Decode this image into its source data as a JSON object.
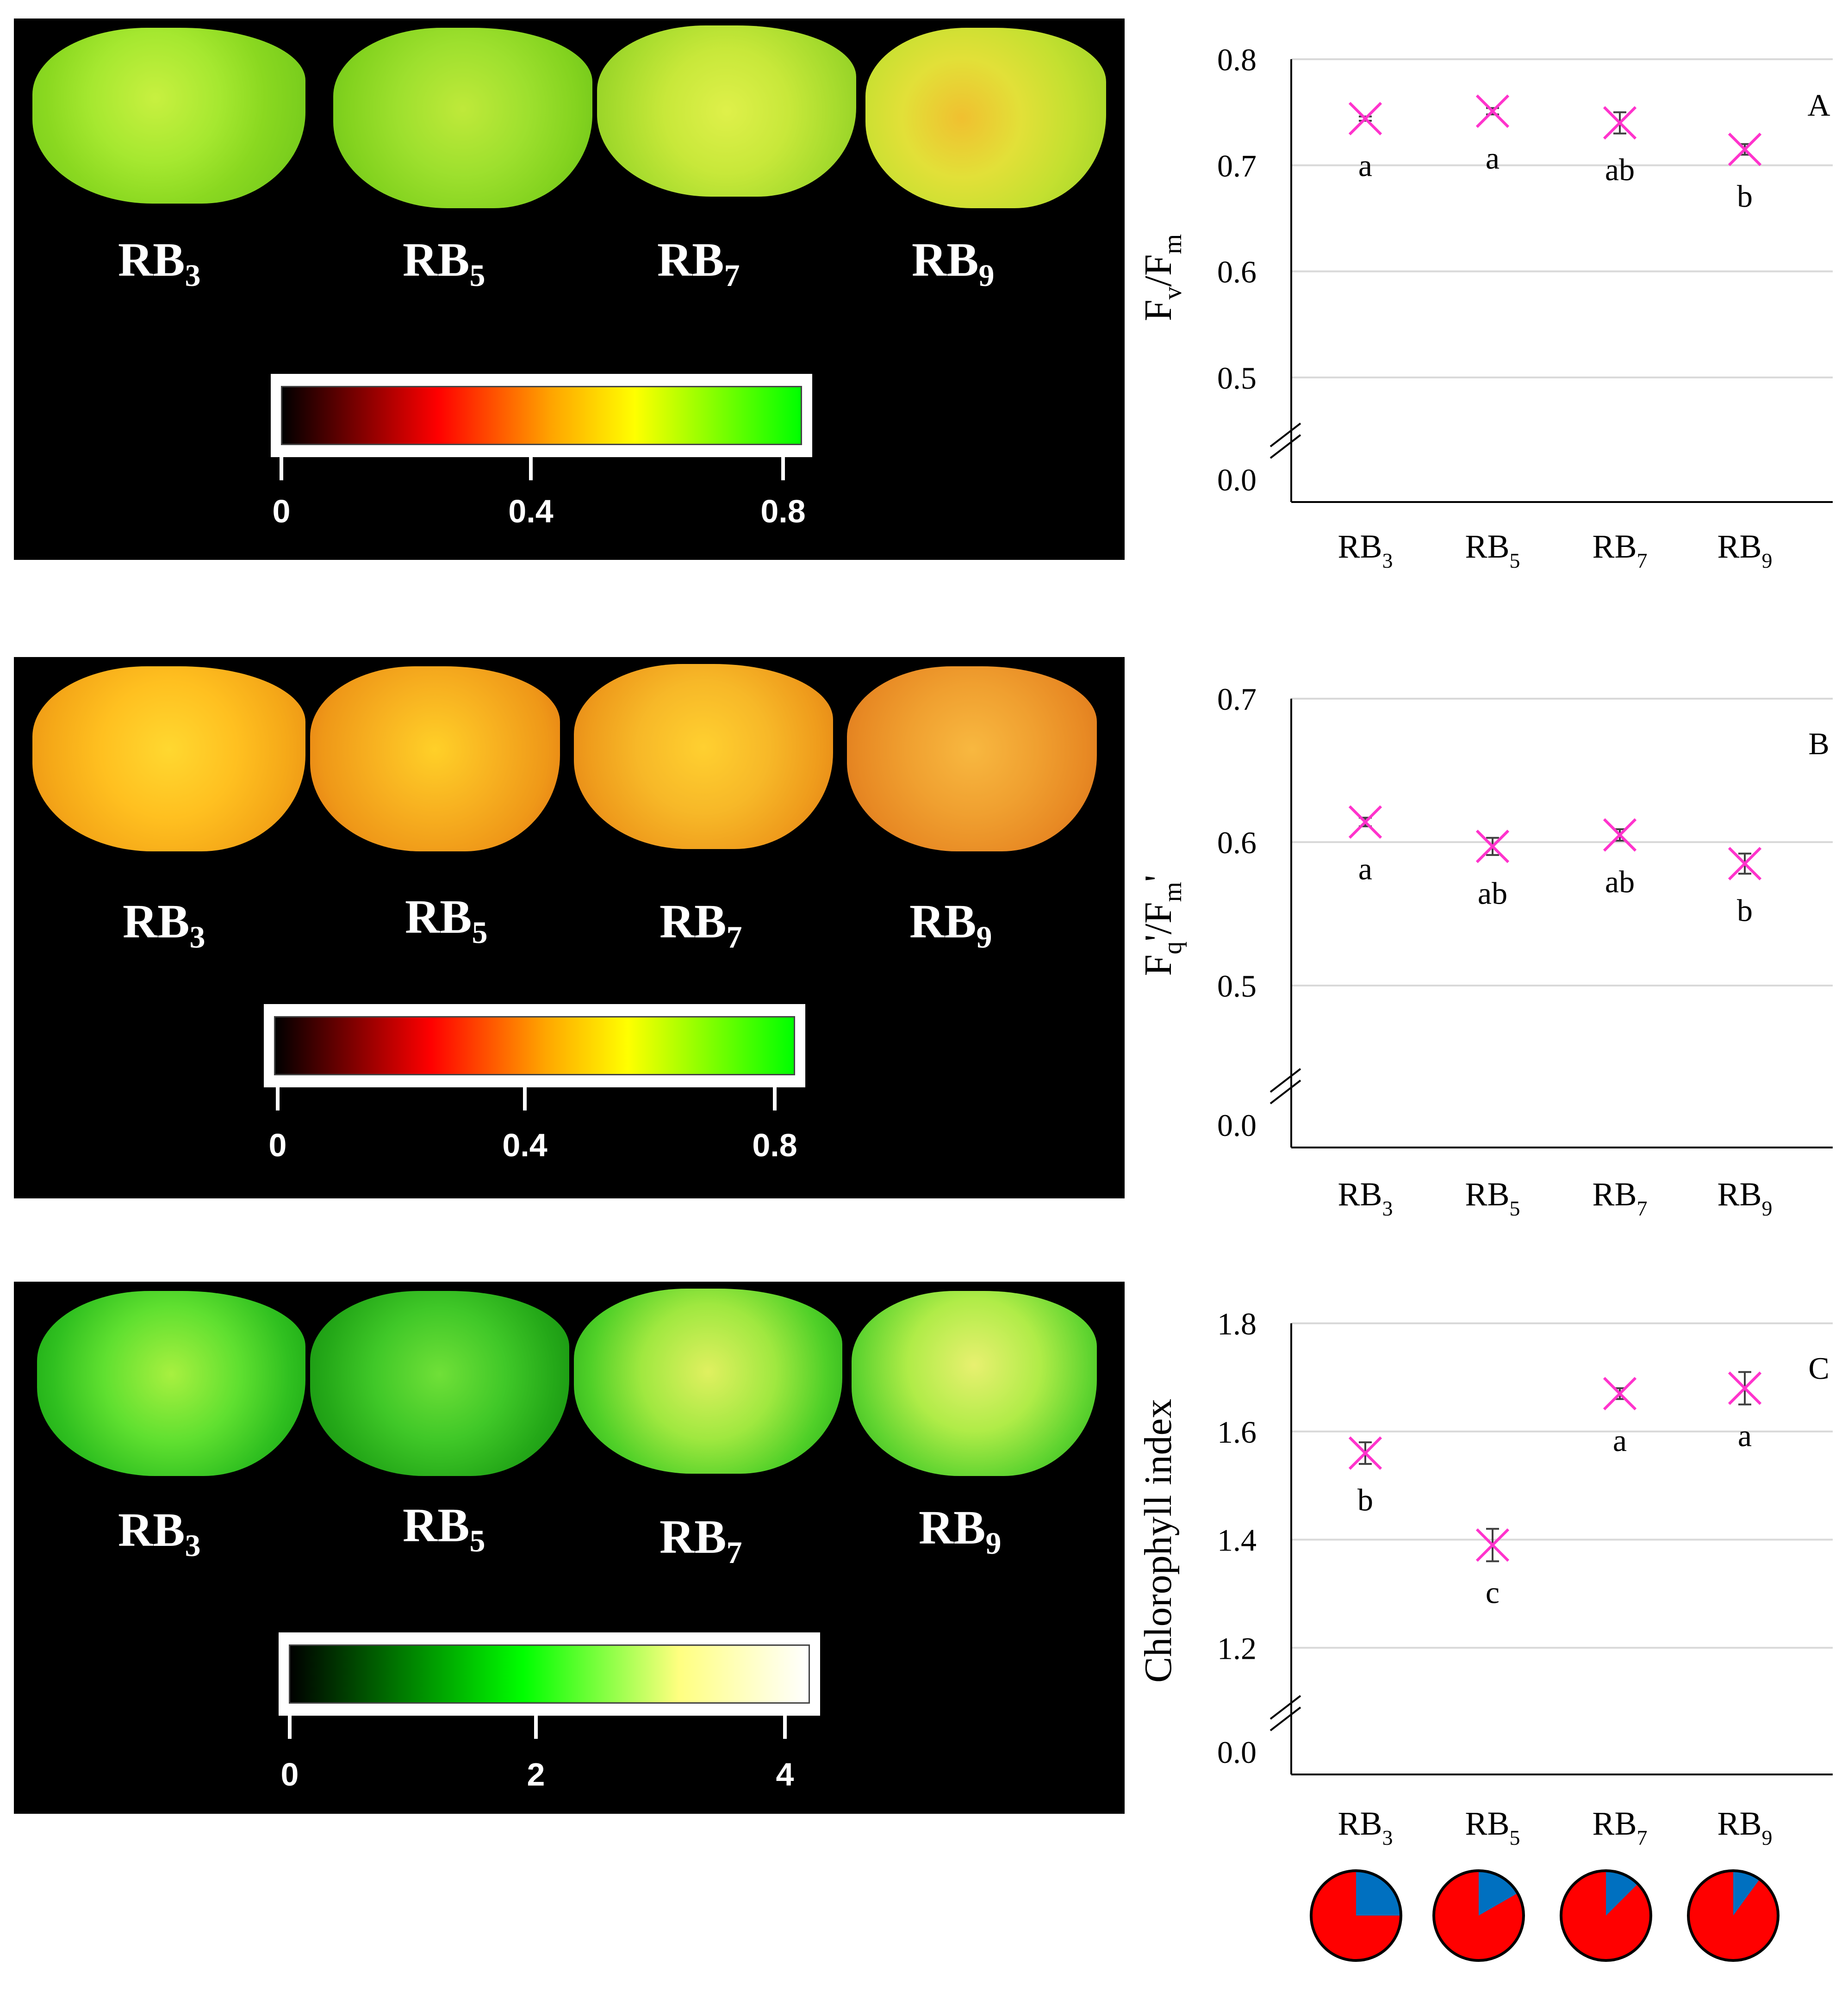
{
  "colors": {
    "marker": "#ff33cc",
    "errorbar": "#404040",
    "grid": "#d9d9d9",
    "axis": "#000000",
    "pie_red": "#ff0000",
    "pie_blue": "#0070c0",
    "fluorescence_scale": [
      "#000000",
      "#ff0000",
      "#ffa500",
      "#ffff00",
      "#00ff00"
    ],
    "chlorophyll_scale": [
      "#000000",
      "#00ff00",
      "#ffff80",
      "#ffffff"
    ]
  },
  "images": [
    {
      "labels": [
        {
          "base": "RB",
          "sub": "3"
        },
        {
          "base": "RB",
          "sub": "5"
        },
        {
          "base": "RB",
          "sub": "7"
        },
        {
          "base": "RB",
          "sub": "9"
        }
      ],
      "colorbar_ticks": [
        "0",
        "0.4",
        "0.8"
      ]
    },
    {
      "labels": [
        {
          "base": "RB",
          "sub": "3"
        },
        {
          "base": "RB",
          "sub": "5"
        },
        {
          "base": "RB",
          "sub": "7"
        },
        {
          "base": "RB",
          "sub": "9"
        }
      ],
      "colorbar_ticks": [
        "0",
        "0.4",
        "0.8"
      ]
    },
    {
      "labels": [
        {
          "base": "RB",
          "sub": "3"
        },
        {
          "base": "RB",
          "sub": "5"
        },
        {
          "base": "RB",
          "sub": "7"
        },
        {
          "base": "RB",
          "sub": "9"
        }
      ],
      "colorbar_ticks": [
        "0",
        "2",
        "4"
      ]
    }
  ],
  "chart_data": [
    {
      "type": "scatter",
      "panel_letter": "A",
      "ylabel": {
        "main": "F",
        "sub1": "v",
        "mid": "/F",
        "sub2": "m",
        "prime": ""
      },
      "categories": [
        {
          "base": "RB",
          "sub": "3"
        },
        {
          "base": "RB",
          "sub": "5"
        },
        {
          "base": "RB",
          "sub": "7"
        },
        {
          "base": "RB",
          "sub": "9"
        }
      ],
      "values": [
        0.744,
        0.751,
        0.74,
        0.715
      ],
      "errors": [
        0.002,
        0.003,
        0.01,
        0.005
      ],
      "significance": [
        "a",
        "a",
        "ab",
        "b"
      ],
      "ylim": [
        0.4,
        0.8
      ],
      "yticks": [
        0.5,
        0.6,
        0.7,
        0.8
      ],
      "axis_break_label": "0.0",
      "grid": true
    },
    {
      "type": "scatter",
      "panel_letter": "B",
      "ylabel": {
        "main": "F",
        "sub1": "q",
        "mid": "'/F",
        "sub2": "m",
        "prime": "'"
      },
      "categories": [
        {
          "base": "RB",
          "sub": "3"
        },
        {
          "base": "RB",
          "sub": "5"
        },
        {
          "base": "RB",
          "sub": "7"
        },
        {
          "base": "RB",
          "sub": "9"
        }
      ],
      "values": [
        0.614,
        0.597,
        0.605,
        0.585
      ],
      "errors": [
        0.003,
        0.006,
        0.004,
        0.007
      ],
      "significance": [
        "a",
        "ab",
        "ab",
        "b"
      ],
      "ylim": [
        0.4,
        0.7
      ],
      "yticks": [
        0.5,
        0.6,
        0.7
      ],
      "axis_break_label": "0.0",
      "grid": true
    },
    {
      "type": "scatter",
      "panel_letter": "C",
      "ylabel": {
        "text": "Chlorophyll index"
      },
      "categories": [
        {
          "base": "RB",
          "sub": "3"
        },
        {
          "base": "RB",
          "sub": "5"
        },
        {
          "base": "RB",
          "sub": "7"
        },
        {
          "base": "RB",
          "sub": "9"
        }
      ],
      "values": [
        1.56,
        1.39,
        1.67,
        1.68
      ],
      "errors": [
        0.02,
        0.03,
        0.01,
        0.03
      ],
      "significance": [
        "b",
        "c",
        "a",
        "a"
      ],
      "ylim": [
        1.0,
        1.8
      ],
      "yticks": [
        1.2,
        1.4,
        1.6,
        1.8
      ],
      "axis_break_label": "0.0",
      "grid": true
    }
  ],
  "pies": [
    {
      "label": "RB3",
      "blue_fraction": 0.25
    },
    {
      "label": "RB5",
      "blue_fraction": 0.167
    },
    {
      "label": "RB7",
      "blue_fraction": 0.125
    },
    {
      "label": "RB9",
      "blue_fraction": 0.1
    }
  ]
}
